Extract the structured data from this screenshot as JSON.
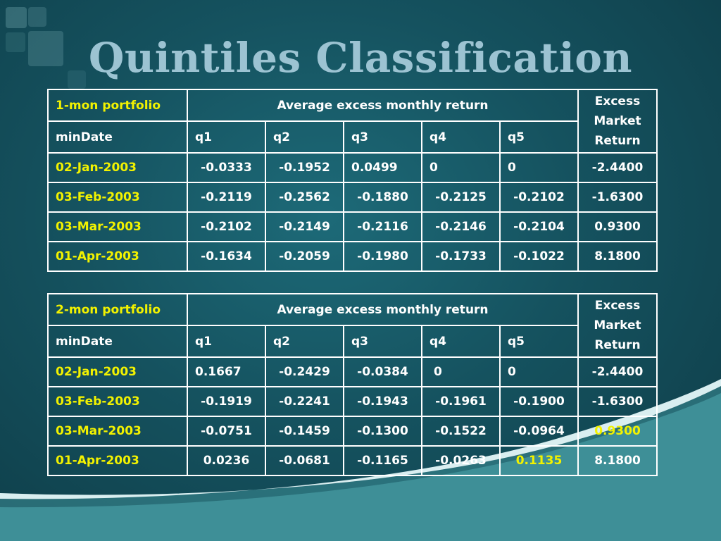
{
  "slide": {
    "title": "Quintiles Classification"
  },
  "table1": {
    "portfolio_label": "1-mon portfolio",
    "group_header": "Average excess monthly return",
    "excess_header": [
      "Excess",
      "Market",
      "Return"
    ],
    "date_header": "minDate",
    "quintile_headers": [
      "q1",
      "q2",
      "q3",
      "q4",
      "q5"
    ],
    "rows": [
      {
        "date": "02-Jan-2003",
        "q": [
          "-0.0333",
          "-0.1952",
          "0.0499",
          "0",
          "0"
        ],
        "excess": "-2.4400"
      },
      {
        "date": "03-Feb-2003",
        "q": [
          "-0.2119",
          "-0.2562",
          "-0.1880",
          "-0.2125",
          "-0.2102"
        ],
        "excess": "-1.6300"
      },
      {
        "date": "03-Mar-2003",
        "q": [
          "-0.2102",
          "-0.2149",
          "-0.2116",
          "-0.2146",
          "-0.2104"
        ],
        "excess": "0.9300"
      },
      {
        "date": "01-Apr-2003",
        "q": [
          "-0.1634",
          "-0.2059",
          "-0.1980",
          "-0.1733",
          "-0.1022"
        ],
        "excess": "8.1800"
      }
    ]
  },
  "table2": {
    "portfolio_label": "2-mon portfolio",
    "group_header": "Average excess monthly return",
    "excess_header": [
      "Excess",
      "Market",
      "Return"
    ],
    "date_header": "minDate",
    "quintile_headers": [
      "q1",
      "q2",
      "q3",
      "q4",
      "q5"
    ],
    "rows": [
      {
        "date": "02-Jan-2003",
        "q": [
          "0.1667",
          "-0.2429",
          "-0.0384",
          "0",
          "0"
        ],
        "excess": "-2.4400"
      },
      {
        "date": "03-Feb-2003",
        "q": [
          "-0.1919",
          "-0.2241",
          "-0.1943",
          "-0.1961",
          "-0.1900"
        ],
        "excess": "-1.6300"
      },
      {
        "date": "03-Mar-2003",
        "q": [
          "-0.0751",
          "-0.1459",
          "-0.1300",
          "-0.1522",
          "-0.0964"
        ],
        "excess": "0.9300"
      },
      {
        "date": "01-Apr-2003",
        "q": [
          "0.0236",
          "-0.0681",
          "-0.1165",
          "-0.0263",
          "0.1135"
        ],
        "excess": "8.1800"
      }
    ]
  },
  "colors": {
    "background": "#15525f",
    "title": "#9cc3d2",
    "date_text": "#f2f200",
    "cell_text": "#ffffff",
    "wave": "#d9eef0"
  }
}
